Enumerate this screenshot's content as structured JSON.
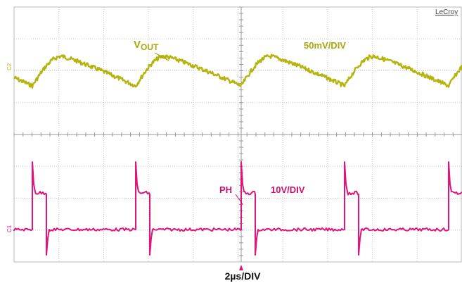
{
  "brand": "LeCroy",
  "channels": [
    {
      "label_main": "V",
      "label_sub": "OUT",
      "scale": "50mV/DIV",
      "marker": "C2",
      "color": "#b5b40f"
    },
    {
      "label_main": "PH",
      "scale": "10V/DIV",
      "marker": "C1",
      "color": "#e0147a"
    }
  ],
  "timebase": "2µs/DIV",
  "colors": {
    "grid": "#c8c8c8",
    "frame": "#b8b8b8",
    "center_axis": "#9a9a9a",
    "label_vout": "#a9a80a",
    "label_ph": "#d00f6a",
    "trigger_marker": "#e0147a"
  }
}
